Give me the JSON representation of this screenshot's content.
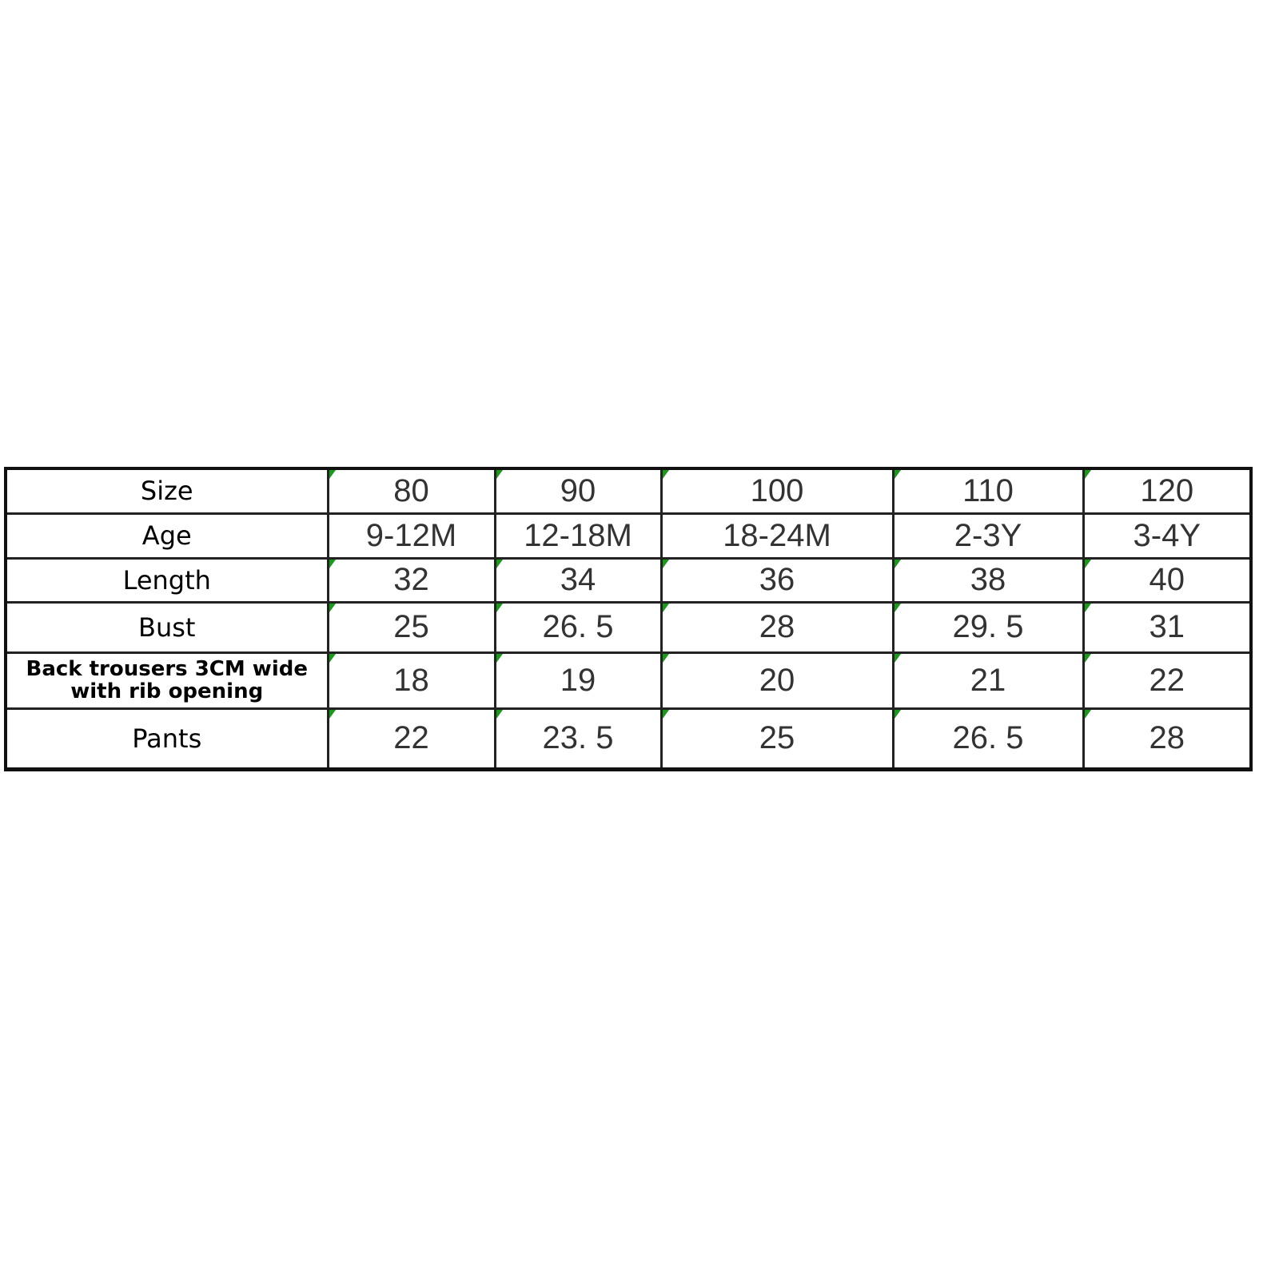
{
  "accent_color": "#1a9a1a",
  "table": {
    "rows": [
      {
        "label": "Size",
        "values": [
          "80",
          "90",
          "100",
          "110",
          "120"
        ],
        "marker": true
      },
      {
        "label": "Age",
        "values": [
          "9-12M",
          "12-18M",
          "18-24M",
          "2-3Y",
          "3-4Y"
        ],
        "marker": false
      },
      {
        "label": "Length",
        "values": [
          "32",
          "34",
          "36",
          "38",
          "40"
        ],
        "marker": true
      },
      {
        "label": "Bust",
        "values": [
          "25",
          "26. 5",
          "28",
          "29. 5",
          "31"
        ],
        "marker": true
      },
      {
        "label": "Back trousers 3CM wide with rib opening",
        "values": [
          "18",
          "19",
          "20",
          "21",
          "22"
        ],
        "marker": true,
        "small": true
      },
      {
        "label": "Pants",
        "values": [
          "22",
          "23. 5",
          "25",
          "26. 5",
          "28"
        ],
        "marker": true
      }
    ]
  }
}
